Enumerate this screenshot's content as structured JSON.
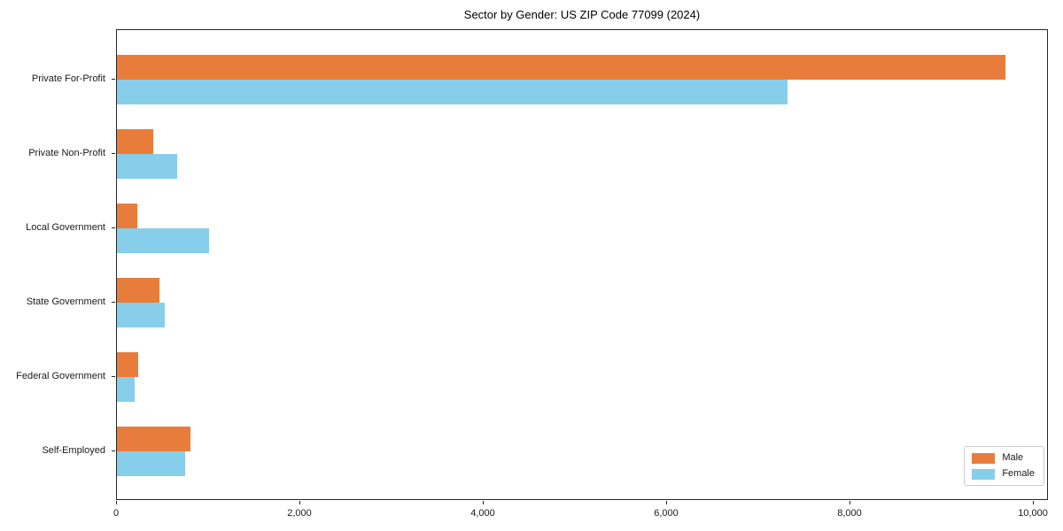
{
  "title": "Sector by Gender: US ZIP Code 77099 (2024)",
  "chart_data": {
    "type": "bar",
    "orientation": "horizontal",
    "title": "Sector by Gender: US ZIP Code 77099 (2024)",
    "categories": [
      "Private For-Profit",
      "Private Non-Profit",
      "Local Government",
      "State Government",
      "Federal Government",
      "Self-Employed"
    ],
    "series": [
      {
        "name": "Male",
        "color": "#E87D3B",
        "values": [
          9690,
          400,
          225,
          465,
          235,
          800
        ]
      },
      {
        "name": "Female",
        "color": "#87CEEB",
        "values": [
          7315,
          660,
          1005,
          520,
          190,
          745
        ]
      }
    ],
    "xlabel": "",
    "ylabel": "",
    "xlim": [
      0,
      10164
    ],
    "xticks": {
      "values": [
        0,
        2000,
        4000,
        6000,
        8000,
        10000
      ],
      "labels": [
        "0",
        "2,000",
        "4,000",
        "6,000",
        "8,000",
        "10,000"
      ]
    },
    "grid": false,
    "legend_position": "lower right",
    "frame": true
  }
}
